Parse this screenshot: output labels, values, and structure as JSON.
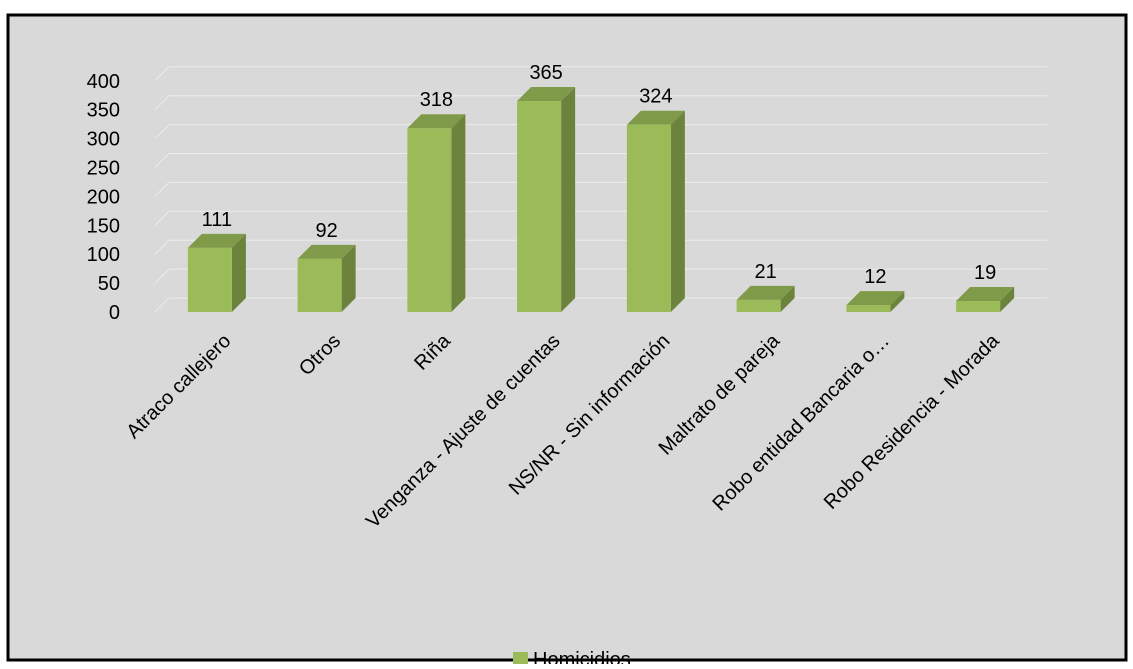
{
  "chart_data": {
    "type": "bar",
    "style": "3d-column",
    "categories": [
      "Atraco callejero",
      "Otros",
      "Riña",
      "Venganza - Ajuste de cuentas",
      "NS/NR - Sin información",
      "Maltrato de pareja",
      "Robo entidad Bancaria o…",
      "Robo Residencia - Morada"
    ],
    "series": [
      {
        "name": "Homicidios",
        "values": [
          111,
          92,
          318,
          365,
          324,
          21,
          12,
          19
        ]
      }
    ],
    "data_labels": [
      "111",
      "92",
      "318",
      "365",
      "324",
      "21",
      "12",
      "19"
    ],
    "ylim": [
      0,
      400
    ],
    "yticks": [
      "0",
      "50",
      "100",
      "150",
      "200",
      "250",
      "300",
      "350",
      "400"
    ],
    "legend_position": "bottom",
    "grid": true,
    "colors": {
      "bar_front": "#9bbb59",
      "bar_top": "#7f9a48",
      "bar_side": "#6b833c",
      "background": "#d9d9d9",
      "gridline": "#ececec",
      "border": "#000000"
    }
  }
}
